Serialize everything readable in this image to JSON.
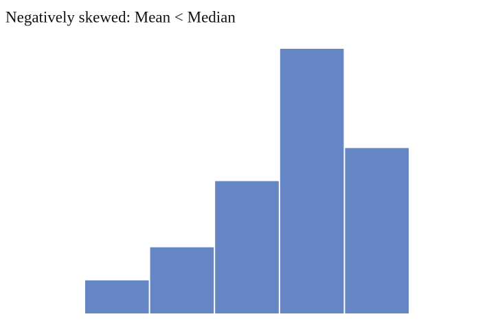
{
  "chart_data": {
    "type": "bar",
    "title": "Negatively skewed: Mean < Median",
    "categories": [
      null,
      null,
      null,
      null,
      null
    ],
    "values": [
      1,
      2,
      4,
      8,
      5
    ],
    "color": "#6585c4",
    "ylim": [
      0,
      8
    ]
  }
}
